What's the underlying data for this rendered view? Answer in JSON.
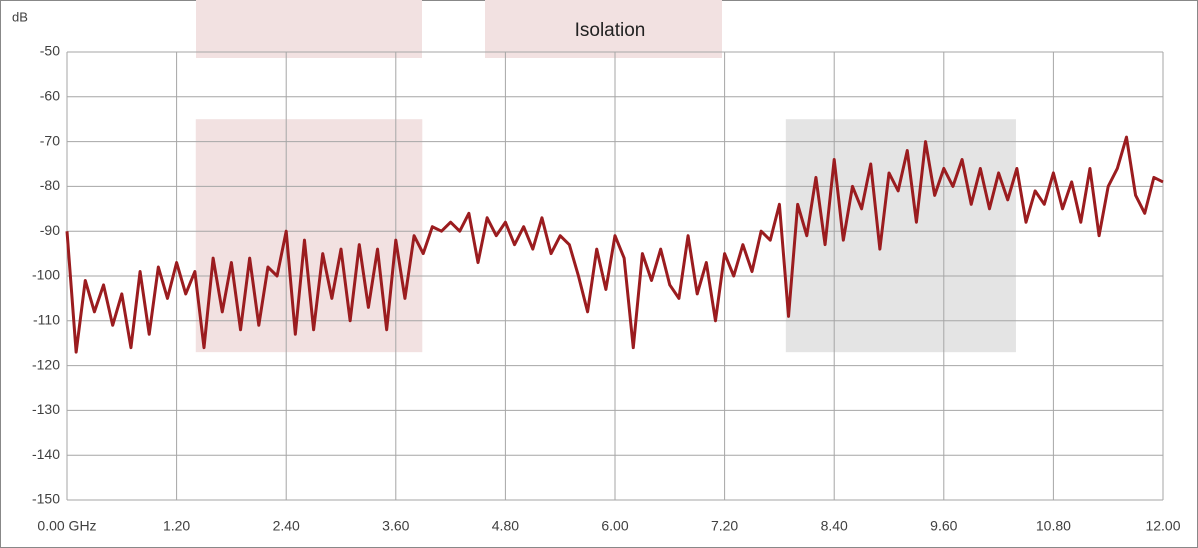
{
  "chart_data": {
    "type": "line",
    "title": "Isolation",
    "ylabel": "dB",
    "x": [
      0.0,
      0.1,
      0.2,
      0.3,
      0.4,
      0.5,
      0.6,
      0.7,
      0.8,
      0.9,
      1.0,
      1.1,
      1.2,
      1.3,
      1.4,
      1.5,
      1.6,
      1.7,
      1.8,
      1.9,
      2.0,
      2.1,
      2.2,
      2.3,
      2.4,
      2.5,
      2.6,
      2.7,
      2.8,
      2.9,
      3.0,
      3.1,
      3.2,
      3.3,
      3.4,
      3.5,
      3.6,
      3.7,
      3.8,
      3.9,
      4.0,
      4.1,
      4.2,
      4.3,
      4.4,
      4.5,
      4.6,
      4.7,
      4.8,
      4.9,
      5.0,
      5.1,
      5.2,
      5.3,
      5.4,
      5.5,
      5.6,
      5.7,
      5.8,
      5.9,
      6.0,
      6.1,
      6.2,
      6.3,
      6.4,
      6.5,
      6.6,
      6.7,
      6.8,
      6.9,
      7.0,
      7.1,
      7.2,
      7.3,
      7.4,
      7.5,
      7.6,
      7.7,
      7.8,
      7.9,
      8.0,
      8.1,
      8.2,
      8.3,
      8.4,
      8.5,
      8.6,
      8.7,
      8.8,
      8.9,
      9.0,
      9.1,
      9.2,
      9.3,
      9.4,
      9.5,
      9.6,
      9.7,
      9.8,
      9.9,
      10.0,
      10.1,
      10.2,
      10.3,
      10.4,
      10.5,
      10.6,
      10.7,
      10.8,
      10.9,
      11.0,
      11.1,
      11.2,
      11.3,
      11.4,
      11.5,
      11.6,
      11.7,
      11.8,
      11.9,
      12.0
    ],
    "series": [
      {
        "color": "#9b1c1f",
        "values": [
          -90,
          -117,
          -101,
          -108,
          -102,
          -111,
          -104,
          -116,
          -99,
          -113,
          -98,
          -105,
          -97,
          -104,
          -99,
          -116,
          -96,
          -108,
          -97,
          -112,
          -96,
          -111,
          -98,
          -100,
          -90,
          -113,
          -92,
          -112,
          -95,
          -105,
          -94,
          -110,
          -93,
          -107,
          -94,
          -112,
          -92,
          -105,
          -91,
          -95,
          -89,
          -90,
          -88,
          -90,
          -86,
          -97,
          -87,
          -91,
          -88,
          -93,
          -89,
          -94,
          -87,
          -95,
          -91,
          -93,
          -100,
          -108,
          -94,
          -103,
          -91,
          -96,
          -116,
          -95,
          -101,
          -94,
          -102,
          -105,
          -91,
          -104,
          -97,
          -110,
          -95,
          -100,
          -93,
          -99,
          -90,
          -92,
          -84,
          -109,
          -84,
          -91,
          -78,
          -93,
          -74,
          -92,
          -80,
          -85,
          -75,
          -94,
          -77,
          -81,
          -72,
          -88,
          -70,
          -82,
          -76,
          -80,
          -74,
          -84,
          -76,
          -85,
          -77,
          -83,
          -76,
          -88,
          -81,
          -84,
          -77,
          -85,
          -79,
          -88,
          -76,
          -91,
          -80,
          -76,
          -69,
          -82,
          -86,
          -78,
          -79
        ]
      }
    ],
    "regions": [
      {
        "xlim": [
          1.41,
          3.89
        ],
        "ylim": [
          -117,
          -65
        ],
        "color": "#f2e1e1"
      },
      {
        "xlim": [
          7.87,
          10.39
        ],
        "ylim": [
          -117,
          -65
        ],
        "color": "#e4e4e4"
      }
    ],
    "xlim": [
      0,
      12
    ],
    "ylim": [
      -150,
      -50
    ],
    "xticks": [
      {
        "value": 0,
        "label": "0.00 GHz"
      },
      {
        "value": 1.2,
        "label": "1.20"
      },
      {
        "value": 2.4,
        "label": "2.40"
      },
      {
        "value": 3.6,
        "label": "3.60"
      },
      {
        "value": 4.8,
        "label": "4.80"
      },
      {
        "value": 6.0,
        "label": "6.00"
      },
      {
        "value": 7.2,
        "label": "7.20"
      },
      {
        "value": 8.4,
        "label": "8.40"
      },
      {
        "value": 9.6,
        "label": "9.60"
      },
      {
        "value": 10.8,
        "label": "10.80"
      },
      {
        "value": 12.0,
        "label": "12.00"
      }
    ],
    "yticks": [
      -150,
      -140,
      -130,
      -120,
      -110,
      -100,
      -90,
      -80,
      -70,
      -60,
      -50
    ],
    "grid": true
  }
}
